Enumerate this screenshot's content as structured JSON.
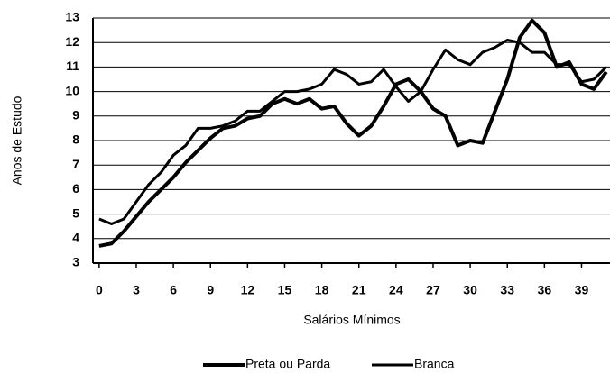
{
  "chart_data": {
    "type": "line",
    "y_label": "Anos de Estudo",
    "x_label": "Salários Mínimos",
    "x": [
      0,
      1,
      2,
      3,
      4,
      5,
      6,
      7,
      8,
      9,
      10,
      11,
      12,
      13,
      14,
      15,
      16,
      17,
      18,
      19,
      20,
      21,
      22,
      23,
      24,
      25,
      26,
      27,
      28,
      29,
      30,
      31,
      32,
      33,
      34,
      35,
      36,
      37,
      38,
      39,
      40,
      41
    ],
    "series": [
      {
        "name": "Preta ou Parda",
        "color": "#000000",
        "values": [
          3.7,
          3.8,
          4.3,
          4.9,
          5.5,
          6.0,
          6.5,
          7.1,
          7.6,
          8.1,
          8.5,
          8.6,
          8.9,
          9.0,
          9.5,
          9.7,
          9.5,
          9.7,
          9.3,
          9.4,
          8.7,
          8.2,
          8.6,
          9.4,
          10.3,
          10.5,
          10.0,
          9.3,
          9.0,
          7.8,
          8.0,
          7.9,
          9.2,
          10.5,
          12.2,
          12.9,
          12.4,
          11.0,
          11.2,
          10.3,
          10.1,
          10.8
        ]
      },
      {
        "name": "Branca",
        "color": "#000000",
        "values": [
          4.8,
          4.6,
          4.8,
          5.5,
          6.2,
          6.7,
          7.4,
          7.8,
          8.5,
          8.5,
          8.6,
          8.8,
          9.2,
          9.2,
          9.6,
          10.0,
          10.0,
          10.1,
          10.3,
          10.9,
          10.7,
          10.3,
          10.4,
          10.9,
          10.2,
          9.6,
          10.0,
          10.9,
          11.7,
          11.3,
          11.1,
          11.6,
          11.8,
          12.1,
          12.0,
          11.6,
          11.6,
          11.1,
          11.1,
          10.4,
          10.5,
          11.0
        ]
      }
    ],
    "xlim": [
      -0.5,
      41.3
    ],
    "xticks": [
      0,
      3,
      6,
      9,
      12,
      15,
      18,
      21,
      24,
      27,
      30,
      33,
      36,
      39
    ],
    "ylim": [
      3,
      13
    ],
    "yticks": [
      3,
      4,
      5,
      6,
      7,
      8,
      9,
      10,
      11,
      12,
      13
    ],
    "grid": true,
    "legend": "bottom"
  }
}
